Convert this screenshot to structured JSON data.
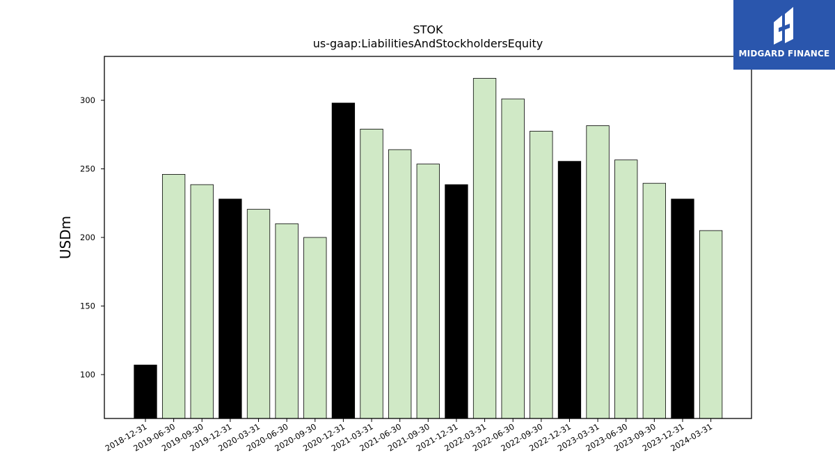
{
  "chart_data": {
    "type": "bar",
    "title": "STOK",
    "subtitle": "us-gaap:LiabilitiesAndStockholdersEquity",
    "ylabel": "USDm",
    "xlabel": "",
    "ylim": [
      68,
      332
    ],
    "yticks": [
      100,
      150,
      200,
      250,
      300
    ],
    "categories": [
      "2018-12-31",
      "2019-06-30",
      "2019-09-30",
      "2019-12-31",
      "2020-03-31",
      "2020-06-30",
      "2020-09-30",
      "2020-12-31",
      "2021-03-31",
      "2021-06-30",
      "2021-09-30",
      "2021-12-31",
      "2022-03-31",
      "2022-06-30",
      "2022-09-30",
      "2022-12-31",
      "2023-03-31",
      "2023-06-30",
      "2023-09-30",
      "2023-12-31",
      "2024-03-31"
    ],
    "values": [
      107,
      246,
      238.5,
      228,
      220.5,
      210,
      200,
      298,
      279,
      264,
      253.5,
      238.5,
      316,
      301,
      277.5,
      255.5,
      281.5,
      256.5,
      239.5,
      228,
      205
    ],
    "bar_colors": [
      "#000000",
      "#d0e9c6",
      "#d0e9c6",
      "#000000",
      "#d0e9c6",
      "#d0e9c6",
      "#d0e9c6",
      "#000000",
      "#d0e9c6",
      "#d0e9c6",
      "#d0e9c6",
      "#000000",
      "#d0e9c6",
      "#d0e9c6",
      "#d0e9c6",
      "#000000",
      "#d0e9c6",
      "#d0e9c6",
      "#d0e9c6",
      "#000000",
      "#d0e9c6"
    ],
    "grid": false,
    "legend": "none"
  },
  "logo": {
    "text": "MIDGARD FINANCE",
    "background": "#2a56ad",
    "icon": "midgard-logo-mark"
  }
}
